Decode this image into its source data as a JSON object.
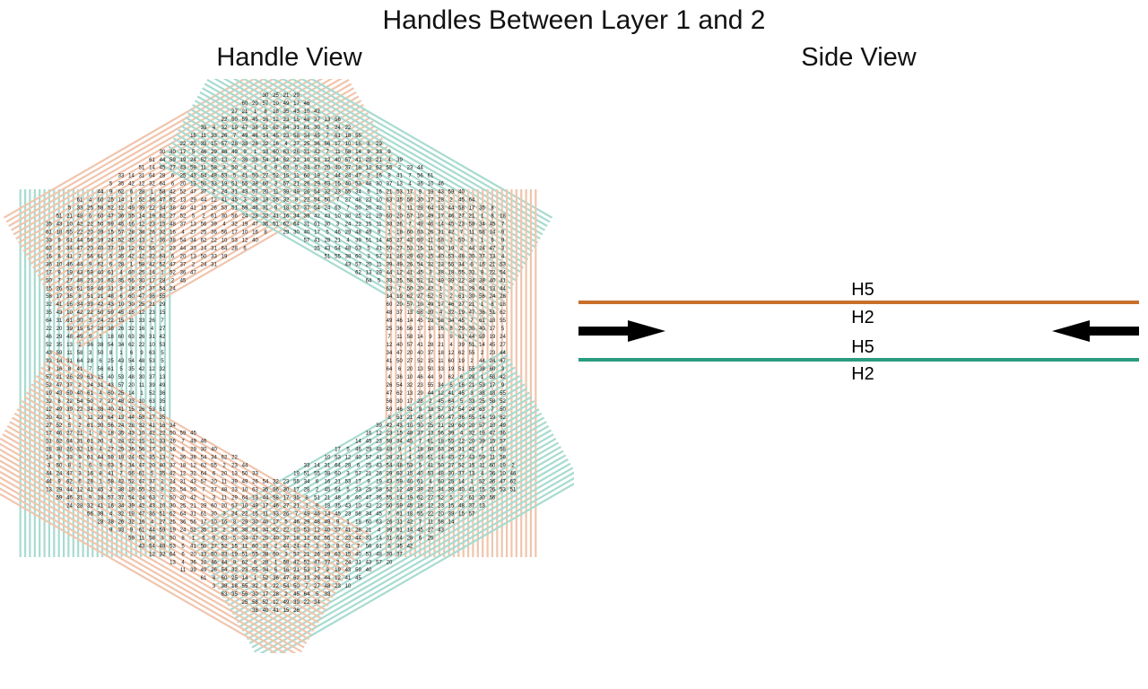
{
  "title": "Handles Between Layer 1 and 2",
  "panels": {
    "handle_view": {
      "title": "Handle View"
    },
    "side_view": {
      "title": "Side View"
    }
  },
  "colors": {
    "layer1_lines": "#f0c5ad",
    "layer2_lines": "#a8dbd0",
    "top_layer": "#c8702a",
    "bottom_layer": "#2a9c80",
    "arrows": "#000000",
    "handle_text": "#111111"
  },
  "side_view": {
    "top_line": {
      "label_above": "H5",
      "label_below": "H2"
    },
    "bottom_line": {
      "label_above": "H5",
      "label_below": "H2"
    },
    "arrows": [
      "arrow-right",
      "arrow-left"
    ]
  },
  "handle_values": [
    30,
    25,
    21,
    29,
    60,
    20,
    57,
    10,
    49,
    17,
    46,
    27,
    21,
    1,
    8,
    18,
    35,
    43,
    10,
    42,
    22,
    50,
    59,
    45,
    16,
    12,
    23,
    15,
    48,
    37,
    13,
    56,
    39,
    4,
    32,
    19,
    47,
    36,
    51,
    62,
    64,
    31,
    61,
    30,
    3,
    24,
    22,
    15,
    11,
    33,
    26,
    7,
    49,
    46,
    14,
    45,
    23,
    58,
    34,
    45,
    7,
    61,
    18,
    55,
    22,
    20,
    39,
    15,
    57,
    28,
    38,
    26,
    32,
    16,
    4,
    27,
    25,
    36,
    56,
    17,
    10,
    16,
    8,
    29,
    30,
    40,
    17,
    5,
    46,
    29,
    48,
    49,
    9,
    1,
    18,
    60,
    63,
    26,
    31,
    42,
    7,
    11,
    58,
    14,
    9,
    33,
    9,
    61,
    44,
    59,
    19,
    24,
    52,
    35,
    13,
    2,
    36,
    38,
    54,
    34,
    62,
    22,
    10,
    53,
    12,
    40,
    57,
    41,
    28,
    21,
    4,
    39,
    51,
    14,
    45,
    27,
    43,
    59,
    11,
    58,
    3,
    50,
    8,
    1,
    6,
    9,
    63,
    5,
    34,
    47,
    20,
    40,
    37,
    18,
    12,
    62,
    55,
    2,
    23,
    44,
    33,
    14,
    31,
    64,
    28,
    6,
    25,
    43,
    54,
    48,
    53,
    5,
    41,
    50,
    27,
    52,
    15,
    11,
    60,
    19,
    2,
    44,
    24,
    47,
    3,
    16,
    8,
    41,
    7,
    56,
    61,
    5,
    35,
    42,
    12,
    32,
    64,
    6,
    20,
    13,
    50,
    33,
    19,
    51,
    55,
    38,
    60,
    3,
    57,
    21,
    26,
    29,
    63,
    15,
    40,
    53,
    48,
    30,
    37,
    13,
    4,
    36,
    10,
    46,
    44,
    9,
    62,
    6,
    28,
    1,
    58,
    42,
    52,
    47,
    37,
    2,
    24,
    31,
    43,
    57,
    20,
    11,
    39,
    49,
    26,
    54,
    32,
    23,
    55,
    34,
    6,
    16,
    21,
    53,
    17,
    9,
    19,
    43,
    59,
    40,
    61,
    4,
    60,
    25,
    14,
    1,
    52,
    36,
    47,
    62,
    13,
    29,
    44,
    12,
    41,
    45,
    3,
    38,
    18,
    55,
    32,
    8,
    22,
    54,
    50,
    7,
    27,
    48,
    23,
    10,
    63,
    35,
    56,
    30,
    17,
    28,
    2,
    45,
    64,
    5,
    33,
    25,
    58,
    52,
    12,
    49,
    39,
    22,
    34,
    38,
    40,
    41,
    15,
    26,
    53,
    51,
    59,
    46,
    31,
    9,
    18,
    57,
    37,
    54,
    24,
    63,
    7,
    50,
    20,
    42,
    1,
    3,
    11,
    29,
    64,
    13,
    44,
    58,
    17,
    35,
    8,
    51,
    21,
    48,
    6,
    60,
    47,
    36,
    55,
    14,
    19,
    62,
    27,
    52,
    5,
    2,
    61,
    30,
    56,
    24,
    28,
    32,
    41,
    16,
    34,
    39,
    42,
    43,
    10
  ]
}
